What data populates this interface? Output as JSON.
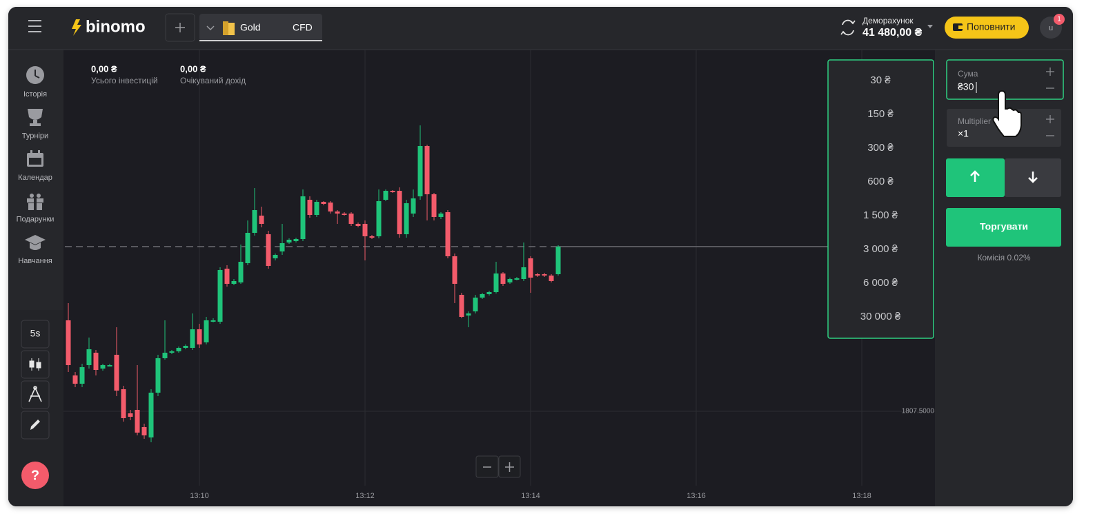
{
  "header": {
    "logo": "binomo",
    "asset": {
      "name": "Gold",
      "kind": "CFD"
    },
    "account": {
      "label": "Деморахунок",
      "balance": "41 480,00 ₴"
    },
    "deposit_button": "Поповнити",
    "avatar": "u",
    "notifications": "1"
  },
  "sidebar": {
    "items": [
      "Історія",
      "Турніри",
      "Календар",
      "Подарунки",
      "Навчання"
    ],
    "timeframe": "5s",
    "help": "?"
  },
  "stats": [
    {
      "value": "0,00 ₴",
      "label": "Усього інвестицій"
    },
    {
      "value": "0,00 ₴",
      "label": "Очікуваний дохід"
    }
  ],
  "chart_data": {
    "type": "candlestick",
    "open": [
      1808.82,
      1808.02,
      1807.9,
      1808.17,
      1808.35,
      1808.12,
      1808.17,
      1808.32,
      1807.82,
      1807.47,
      1807.52,
      1807.27,
      1807.12,
      1807.77,
      1808.27,
      1808.35,
      1808.37,
      1808.42,
      1808.42,
      1808.69,
      1808.5,
      1808.8,
      1808.8,
      1809.57,
      1809.35,
      1809.37,
      1809.65,
      1810.09,
      1810.34,
      1810.07,
      1809.72,
      1809.82,
      1809.95,
      1809.97,
      1810.0,
      1810.57,
      1810.35,
      1810.54,
      1810.53,
      1810.4,
      1810.37,
      1810.37,
      1810.22,
      1810.22,
      1810.04,
      1810.04,
      1810.57,
      1810.7,
      1810.7,
      1810.07,
      1810.37,
      1810.62,
      1811.35,
      1810.65,
      1810.32,
      1810.39,
      1809.75,
      1809.19,
      1808.89,
      1808.95,
      1809.15,
      1809.2,
      1809.23,
      1809.5,
      1809.37,
      1809.42,
      1809.42,
      1809.72,
      1809.49,
      1809.49,
      1809.47,
      1809.49
    ],
    "high": [
      1809.07,
      1808.07,
      1808.19,
      1808.57,
      1808.39,
      1808.19,
      1808.19,
      1808.72,
      1807.87,
      1807.52,
      1808.17,
      1807.32,
      1807.82,
      1808.32,
      1808.82,
      1808.39,
      1808.44,
      1808.47,
      1808.92,
      1808.77,
      1808.87,
      1808.85,
      1809.59,
      1809.62,
      1809.42,
      1809.92,
      1810.27,
      1810.74,
      1810.47,
      1810.12,
      1809.79,
      1810.22,
      1810.01,
      1810.02,
      1810.72,
      1810.62,
      1810.57,
      1810.55,
      1810.55,
      1810.42,
      1810.39,
      1810.39,
      1810.24,
      1810.27,
      1810.06,
      1810.72,
      1810.72,
      1810.71,
      1810.75,
      1810.57,
      1810.72,
      1811.65,
      1811.37,
      1810.67,
      1810.39,
      1810.42,
      1809.79,
      1809.22,
      1808.95,
      1809.19,
      1809.22,
      1809.25,
      1809.67,
      1809.52,
      1809.44,
      1809.45,
      1809.95,
      1809.75,
      1809.51,
      1809.51,
      1809.49,
      1809.91
    ],
    "low": [
      1808.07,
      1807.85,
      1807.85,
      1808.12,
      1808.02,
      1808.09,
      1808.15,
      1807.72,
      1807.35,
      1807.37,
      1807.15,
      1807.1,
      1807.05,
      1807.72,
      1808.25,
      1808.33,
      1808.35,
      1808.4,
      1808.39,
      1808.42,
      1808.47,
      1808.79,
      1808.77,
      1809.31,
      1809.33,
      1809.35,
      1809.62,
      1810.05,
      1810.17,
      1809.57,
      1809.69,
      1809.77,
      1809.93,
      1809.95,
      1809.97,
      1810.31,
      1810.32,
      1810.49,
      1810.37,
      1810.22,
      1810.34,
      1810.19,
      1810.17,
      1809.69,
      1810.0,
      1810.01,
      1810.55,
      1810.67,
      1810.02,
      1810.02,
      1810.32,
      1810.57,
      1810.27,
      1810.27,
      1810.29,
      1809.72,
      1809.07,
      1808.85,
      1808.72,
      1808.92,
      1809.13,
      1809.18,
      1809.21,
      1809.32,
      1809.35,
      1809.4,
      1809.39,
      1809.22,
      1809.45,
      1809.45,
      1809.37,
      1809.47
    ],
    "close": [
      1808.17,
      1807.9,
      1808.14,
      1808.4,
      1808.1,
      1808.17,
      1808.17,
      1807.8,
      1807.4,
      1807.42,
      1807.19,
      1807.15,
      1807.77,
      1808.27,
      1808.35,
      1808.37,
      1808.42,
      1808.45,
      1808.69,
      1808.47,
      1808.82,
      1808.82,
      1809.55,
      1809.35,
      1809.39,
      1809.67,
      1810.09,
      1810.42,
      1810.22,
      1809.61,
      1809.77,
      1809.94,
      1809.99,
      1810.0,
      1810.62,
      1810.35,
      1810.54,
      1810.51,
      1810.4,
      1810.37,
      1810.36,
      1810.22,
      1810.19,
      1810.04,
      1810.02,
      1810.55,
      1810.7,
      1810.69,
      1810.07,
      1810.52,
      1810.59,
      1811.35,
      1810.65,
      1810.32,
      1810.37,
      1809.75,
      1809.35,
      1808.87,
      1808.92,
      1809.15,
      1809.2,
      1809.23,
      1809.5,
      1809.35,
      1809.42,
      1809.43,
      1809.59,
      1809.44,
      1809.47,
      1809.47,
      1809.39,
      1809.89
    ],
    "up_color": "#1fc47a",
    "down_color": "#f35b6b",
    "xlim": [
      -0.5,
      125.5
    ],
    "xticks": [
      {
        "value": 19,
        "label": "13:10"
      },
      {
        "value": 43,
        "label": "13:12"
      },
      {
        "value": 67,
        "label": "13:14"
      },
      {
        "value": 91,
        "label": "13:16"
      },
      {
        "value": 115,
        "label": "13:18"
      }
    ],
    "ylim": [
      1806.42,
      1812.72
    ],
    "yticks": [
      {
        "value": 1807.5,
        "label": "1807.5000"
      }
    ],
    "grid": true
  },
  "amount_dropdown": [
    "30 ₴",
    "150 ₴",
    "300 ₴",
    "600 ₴",
    "1 500 ₴",
    "3 000 ₴",
    "6 000 ₴",
    "30 000 ₴"
  ],
  "trade_panel": {
    "amount": {
      "label": "Сума",
      "value": "₴30"
    },
    "multiplier": {
      "label": "Multiplier",
      "value": "×1"
    },
    "trade_button": "Торгувати",
    "commission": "Комісія 0.02%"
  }
}
